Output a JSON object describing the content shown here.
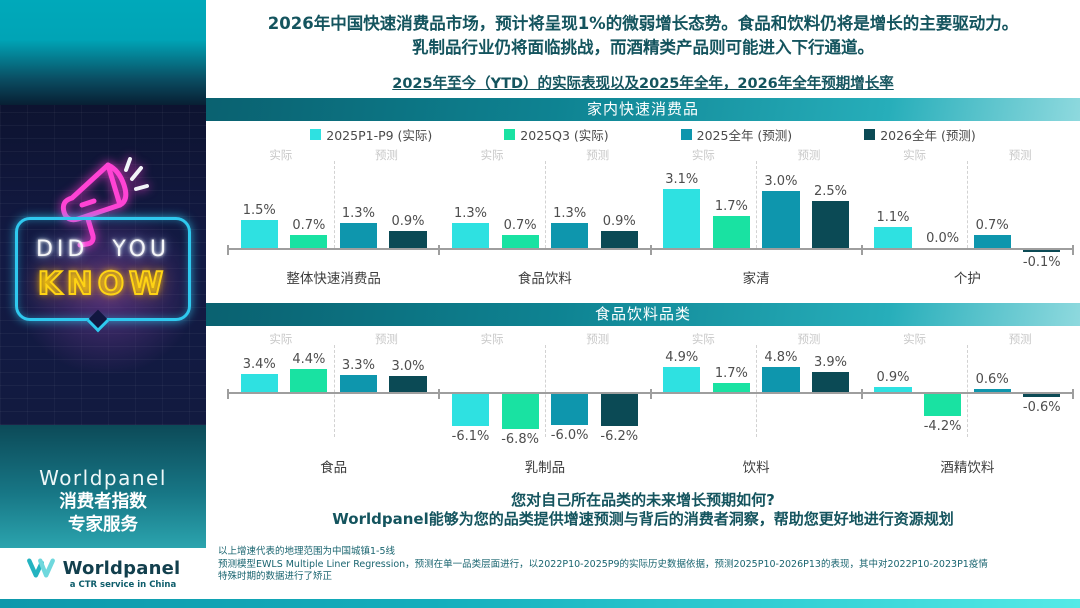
{
  "sidebar": {
    "neon": {
      "word1": "DID",
      "word2": "YOU",
      "word3": "KNOW"
    },
    "brand_block": {
      "brand": "Worldpanel",
      "line1": "消费者指数",
      "line2": "专家服务"
    },
    "logo": {
      "name": "Worldpanel",
      "tagline": "a CTR service in China"
    }
  },
  "header": {
    "title_line1": "2026年中国快速消费品市场，预计将呈现1%的微弱增长态势。食品和饮料仍将是增长的主要驱动力。",
    "title_line2": "乳制品行业仍将面临挑战，而酒精类产品则可能进入下行通道。",
    "subtitle": "2025年至今（YTD）的实际表现以及2025年全年，2026年全年预期增长率"
  },
  "chart_data": [
    {
      "type": "bar",
      "title": "家内快速消费品",
      "categories": [
        "整体快速消费品",
        "食品饮料",
        "家清",
        "个护"
      ],
      "group_sublabels": [
        "实际",
        "预测"
      ],
      "unit": "%",
      "ylim": [
        -0.5,
        3.5
      ],
      "grid": false,
      "legend_position": "top",
      "series": [
        {
          "name": "2025P1-P9 (实际)",
          "color": "#2ee1e1",
          "values": [
            1.5,
            1.3,
            3.1,
            1.1
          ]
        },
        {
          "name": "2025Q3 (实际)",
          "color": "#19e2a2",
          "values": [
            0.7,
            0.7,
            1.7,
            0.0
          ]
        },
        {
          "name": "2025全年 (预测)",
          "color": "#0e96ad",
          "values": [
            1.3,
            1.3,
            3.0,
            0.7
          ]
        },
        {
          "name": "2026全年 (预测)",
          "color": "#0b4a55",
          "values": [
            0.9,
            0.9,
            2.5,
            -0.1
          ]
        }
      ]
    },
    {
      "type": "bar",
      "title": "食品饮料品类",
      "categories": [
        "食品",
        "乳制品",
        "饮料",
        "酒精饮料"
      ],
      "group_sublabels": [
        "实际",
        "预测"
      ],
      "unit": "%",
      "ylim": [
        -7,
        5
      ],
      "grid": false,
      "series": [
        {
          "name": "2025P1-P9 (实际)",
          "color": "#2ee1e1",
          "values": [
            3.4,
            -6.1,
            4.9,
            0.9
          ]
        },
        {
          "name": "2025Q3 (实际)",
          "color": "#19e2a2",
          "values": [
            4.4,
            -6.8,
            1.7,
            -4.2
          ]
        },
        {
          "name": "2025全年 (预测)",
          "color": "#0e96ad",
          "values": [
            3.3,
            -6.0,
            4.8,
            0.6
          ]
        },
        {
          "name": "2026全年 (预测)",
          "color": "#0b4a55",
          "values": [
            3.0,
            -6.2,
            3.9,
            -0.6
          ]
        }
      ]
    }
  ],
  "cta": {
    "line1": "您对自己所在品类的未来增长预期如何?",
    "line2": "Worldpanel能够为您的品类提供增速预测与背后的消费者洞察，帮助您更好地进行资源规划"
  },
  "footnotes": [
    "以上增速代表的地理范围为中国城镇1-5线",
    "预测模型EWLS Multiple Liner Regression，预测在单一品类层面进行，以2022P10-2025P9的实际历史数据依据，预测2025P10-2026P13的表现，其中对2022P10-2023P1疫情",
    "特殊时期的数据进行了矫正"
  ],
  "colors": {
    "accent_cyan": "#2ee1e1",
    "accent_mint": "#19e2a2",
    "accent_teal": "#0e96ad",
    "accent_dark_teal": "#0b4a55",
    "band_gradient_start": "#0a6170",
    "band_gradient_end": "#8ed9de",
    "title_text": "#14545e",
    "axis_gray": "#9e9e9e",
    "neon_cyan": "#2fc9ef",
    "neon_yellow": "#ffd414",
    "neon_pink": "#ff43d4"
  }
}
